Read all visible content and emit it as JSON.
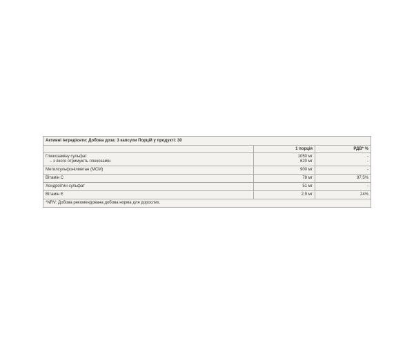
{
  "title": "Активні інгредієнти: Добова доза: 3 капсули Порцій у продукті: 30",
  "headers": [
    "",
    "1 порція",
    "РДВ* %"
  ],
  "rows": [
    {
      "name": "Глюкозаміну сульфат",
      "sub": "– з якого отримують глюкозамін",
      "amount": "1050 мг",
      "sub_amount": "620 мг",
      "rdv": "-",
      "sub_rdv": "-"
    },
    {
      "name": "Метилсульфонілметан (МСМ)",
      "amount": "900 мг",
      "rdv": "-"
    },
    {
      "name": "Вітамін С",
      "amount": "78 мг",
      "rdv": "97,5%"
    },
    {
      "name": "Хондроїтин сульфат",
      "amount": "51 мг",
      "rdv": "-"
    },
    {
      "name": "Вітамін Е",
      "amount": "2,9 мг",
      "rdv": "24%"
    }
  ],
  "footnote": "*NRV: Добова рекомендована добова норма для дорослих."
}
